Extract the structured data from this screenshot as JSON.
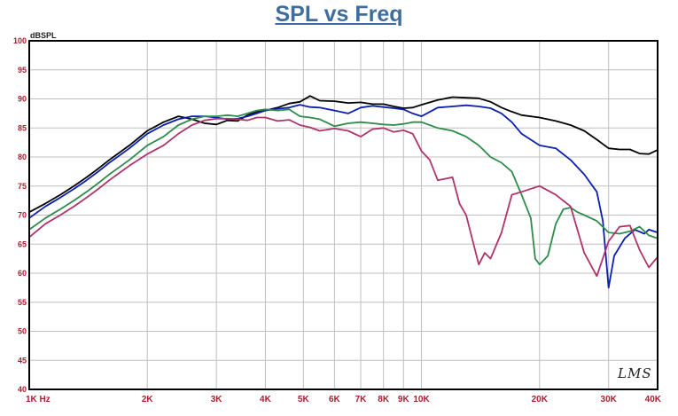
{
  "chart_data": {
    "type": "line",
    "title": "SPL vs Freq",
    "ylabel": "dBSPL",
    "xlabel": "",
    "x_scale": "log",
    "xlim": [
      1000,
      40000
    ],
    "ylim": [
      40,
      100
    ],
    "grid": true,
    "watermark": "LMS",
    "colors": {
      "title": "#3f6d9e",
      "x_tick_labels": "#b01c2e",
      "y_tick_labels": "#b01c2e",
      "frame": "#000000",
      "grid": "#bfbfbf"
    },
    "y_ticks": [
      {
        "value": 40,
        "label": "40"
      },
      {
        "value": 45,
        "label": "45"
      },
      {
        "value": 50,
        "label": "50"
      },
      {
        "value": 55,
        "label": "55"
      },
      {
        "value": 60,
        "label": "60"
      },
      {
        "value": 65,
        "label": "65"
      },
      {
        "value": 70,
        "label": "70"
      },
      {
        "value": 75,
        "label": "75"
      },
      {
        "value": 80,
        "label": "80"
      },
      {
        "value": 85,
        "label": "85"
      },
      {
        "value": 90,
        "label": "90"
      },
      {
        "value": 95,
        "label": "95"
      },
      {
        "value": 100,
        "label": "100"
      }
    ],
    "x_ticks": [
      {
        "value": 1000,
        "label": "1K Hz"
      },
      {
        "value": 2000,
        "label": "2K"
      },
      {
        "value": 3000,
        "label": "3K"
      },
      {
        "value": 4000,
        "label": "4K"
      },
      {
        "value": 5000,
        "label": "5K"
      },
      {
        "value": 6000,
        "label": "6K"
      },
      {
        "value": 7000,
        "label": "7K"
      },
      {
        "value": 8000,
        "label": "8K"
      },
      {
        "value": 9000,
        "label": "9K"
      },
      {
        "value": 10000,
        "label": "10K"
      },
      {
        "value": 20000,
        "label": "20K"
      },
      {
        "value": 30000,
        "label": "30K"
      },
      {
        "value": 40000,
        "label": "40K"
      }
    ],
    "series": [
      {
        "color": "#000000",
        "points": [
          [
            1000,
            70.5
          ],
          [
            1100,
            72
          ],
          [
            1200,
            73.5
          ],
          [
            1300,
            75
          ],
          [
            1400,
            76.5
          ],
          [
            1500,
            78
          ],
          [
            1600,
            79.5
          ],
          [
            1800,
            82
          ],
          [
            2000,
            84.5
          ],
          [
            2200,
            86
          ],
          [
            2400,
            87
          ],
          [
            2600,
            86.5
          ],
          [
            2800,
            85.8
          ],
          [
            3000,
            85.6
          ],
          [
            3200,
            86.3
          ],
          [
            3400,
            86.2
          ],
          [
            3600,
            87.2
          ],
          [
            3800,
            87.8
          ],
          [
            4000,
            88
          ],
          [
            4300,
            88.5
          ],
          [
            4600,
            89.2
          ],
          [
            4900,
            89.5
          ],
          [
            5200,
            90.5
          ],
          [
            5500,
            89.7
          ],
          [
            6000,
            89.6
          ],
          [
            6500,
            89.3
          ],
          [
            7000,
            89.4
          ],
          [
            7500,
            89.1
          ],
          [
            8000,
            89.1
          ],
          [
            8500,
            88.7
          ],
          [
            9000,
            88.4
          ],
          [
            9500,
            88.5
          ],
          [
            10000,
            89
          ],
          [
            11000,
            89.8
          ],
          [
            12000,
            90.3
          ],
          [
            13000,
            90.2
          ],
          [
            14000,
            90.1
          ],
          [
            15000,
            89.5
          ],
          [
            16000,
            88.5
          ],
          [
            17000,
            87.8
          ],
          [
            18000,
            87.2
          ],
          [
            20000,
            86.8
          ],
          [
            22000,
            86.2
          ],
          [
            24000,
            85.5
          ],
          [
            26000,
            84.5
          ],
          [
            28000,
            83
          ],
          [
            30000,
            81.5
          ],
          [
            32000,
            81.3
          ],
          [
            34000,
            81.3
          ],
          [
            36000,
            80.6
          ],
          [
            38000,
            80.5
          ],
          [
            40000,
            81.2
          ]
        ]
      },
      {
        "color": "#0a1fb0",
        "points": [
          [
            1000,
            69.5
          ],
          [
            1100,
            71.5
          ],
          [
            1200,
            73
          ],
          [
            1300,
            74.5
          ],
          [
            1400,
            76
          ],
          [
            1500,
            77.5
          ],
          [
            1600,
            79
          ],
          [
            1800,
            81.5
          ],
          [
            2000,
            84
          ],
          [
            2200,
            85.5
          ],
          [
            2400,
            86.5
          ],
          [
            2600,
            87
          ],
          [
            2800,
            87
          ],
          [
            3000,
            86.8
          ],
          [
            3200,
            86.5
          ],
          [
            3400,
            86.6
          ],
          [
            3600,
            87
          ],
          [
            3800,
            87.5
          ],
          [
            4000,
            88
          ],
          [
            4300,
            88.3
          ],
          [
            4600,
            88.5
          ],
          [
            4900,
            89
          ],
          [
            5200,
            88.6
          ],
          [
            5500,
            88.5
          ],
          [
            6000,
            88
          ],
          [
            6500,
            87.5
          ],
          [
            7000,
            88.5
          ],
          [
            7500,
            88.8
          ],
          [
            8000,
            88.6
          ],
          [
            8500,
            88.4
          ],
          [
            9000,
            88.2
          ],
          [
            9500,
            87.5
          ],
          [
            10000,
            87
          ],
          [
            11000,
            88.5
          ],
          [
            12000,
            88.7
          ],
          [
            13000,
            88.9
          ],
          [
            14000,
            88.7
          ],
          [
            15000,
            88.4
          ],
          [
            16000,
            87.5
          ],
          [
            17000,
            86
          ],
          [
            18000,
            84
          ],
          [
            20000,
            82
          ],
          [
            22000,
            81.5
          ],
          [
            24000,
            79.5
          ],
          [
            26000,
            77
          ],
          [
            28000,
            74
          ],
          [
            29000,
            69
          ],
          [
            30000,
            57.5
          ],
          [
            31000,
            63
          ],
          [
            33000,
            66
          ],
          [
            35000,
            67.5
          ],
          [
            37000,
            66.8
          ],
          [
            38000,
            67.5
          ],
          [
            40000,
            67
          ]
        ]
      },
      {
        "color": "#2e8b4a",
        "points": [
          [
            1000,
            67.5
          ],
          [
            1100,
            69.5
          ],
          [
            1200,
            71
          ],
          [
            1300,
            72.5
          ],
          [
            1400,
            74
          ],
          [
            1500,
            75.5
          ],
          [
            1600,
            77
          ],
          [
            1800,
            79.5
          ],
          [
            2000,
            82
          ],
          [
            2200,
            83.5
          ],
          [
            2400,
            85.5
          ],
          [
            2600,
            86.5
          ],
          [
            2800,
            87
          ],
          [
            3000,
            87
          ],
          [
            3200,
            87.2
          ],
          [
            3400,
            87
          ],
          [
            3600,
            87.5
          ],
          [
            3800,
            88
          ],
          [
            4000,
            88.2
          ],
          [
            4300,
            88
          ],
          [
            4600,
            88.2
          ],
          [
            4900,
            87
          ],
          [
            5200,
            86.8
          ],
          [
            5500,
            86.5
          ],
          [
            6000,
            85.3
          ],
          [
            6500,
            85.8
          ],
          [
            7000,
            86
          ],
          [
            7500,
            85.8
          ],
          [
            8000,
            85.6
          ],
          [
            8500,
            85.5
          ],
          [
            9000,
            85.7
          ],
          [
            9500,
            86
          ],
          [
            10000,
            86
          ],
          [
            11000,
            85
          ],
          [
            12000,
            84.5
          ],
          [
            13000,
            83.5
          ],
          [
            14000,
            82
          ],
          [
            15000,
            80
          ],
          [
            16000,
            79
          ],
          [
            17000,
            77.5
          ],
          [
            18000,
            73.5
          ],
          [
            19000,
            69.5
          ],
          [
            19500,
            62.5
          ],
          [
            20000,
            61.5
          ],
          [
            21000,
            63
          ],
          [
            22000,
            68.5
          ],
          [
            23000,
            71
          ],
          [
            24000,
            71.3
          ],
          [
            25000,
            70.5
          ],
          [
            26000,
            70
          ],
          [
            28000,
            69
          ],
          [
            30000,
            67
          ],
          [
            32000,
            66.8
          ],
          [
            34000,
            67.2
          ],
          [
            36000,
            68
          ],
          [
            38000,
            66.5
          ],
          [
            40000,
            66
          ]
        ]
      },
      {
        "color": "#b0336b",
        "points": [
          [
            1000,
            66.2
          ],
          [
            1100,
            68.5
          ],
          [
            1200,
            70
          ],
          [
            1300,
            71.5
          ],
          [
            1400,
            73
          ],
          [
            1500,
            74.5
          ],
          [
            1600,
            76
          ],
          [
            1800,
            78.5
          ],
          [
            2000,
            80.5
          ],
          [
            2200,
            82
          ],
          [
            2400,
            84
          ],
          [
            2600,
            85.5
          ],
          [
            2800,
            86.3
          ],
          [
            3000,
            86.6
          ],
          [
            3200,
            86.6
          ],
          [
            3400,
            86.5
          ],
          [
            3600,
            86.3
          ],
          [
            3800,
            86.8
          ],
          [
            4000,
            86.8
          ],
          [
            4300,
            86.2
          ],
          [
            4600,
            86.4
          ],
          [
            4900,
            85.5
          ],
          [
            5200,
            85.1
          ],
          [
            5500,
            84.5
          ],
          [
            6000,
            84.9
          ],
          [
            6500,
            84.5
          ],
          [
            7000,
            83.5
          ],
          [
            7500,
            84.8
          ],
          [
            8000,
            85
          ],
          [
            8500,
            84.3
          ],
          [
            9000,
            84.6
          ],
          [
            9500,
            84
          ],
          [
            10000,
            81
          ],
          [
            10500,
            79.5
          ],
          [
            11000,
            76
          ],
          [
            12000,
            76.5
          ],
          [
            12500,
            72
          ],
          [
            13000,
            70
          ],
          [
            14000,
            61.5
          ],
          [
            14500,
            63.5
          ],
          [
            15000,
            62.5
          ],
          [
            16000,
            67
          ],
          [
            17000,
            73.5
          ],
          [
            18000,
            74
          ],
          [
            20000,
            75
          ],
          [
            22000,
            73.5
          ],
          [
            24000,
            71.5
          ],
          [
            26000,
            63.5
          ],
          [
            28000,
            59.5
          ],
          [
            30000,
            65.5
          ],
          [
            32000,
            68
          ],
          [
            34000,
            68.2
          ],
          [
            36000,
            64
          ],
          [
            38000,
            61
          ],
          [
            40000,
            62.8
          ]
        ]
      }
    ]
  }
}
